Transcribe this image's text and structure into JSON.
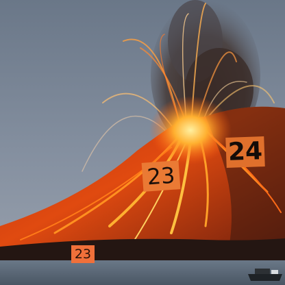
{
  "labels": {
    "label_a": "24",
    "label_b": "23",
    "label_c": "23"
  },
  "colors": {
    "sky": "#7a8799",
    "lava": "#ff6a10",
    "lava_glow": "#ffcc4a",
    "sea": "#5a6878",
    "slope_dark": "#2a1a14",
    "tag_fill": "#e8783a"
  },
  "scene": {
    "subject": "erupting-volcano-icon",
    "boat": "boat-icon"
  }
}
